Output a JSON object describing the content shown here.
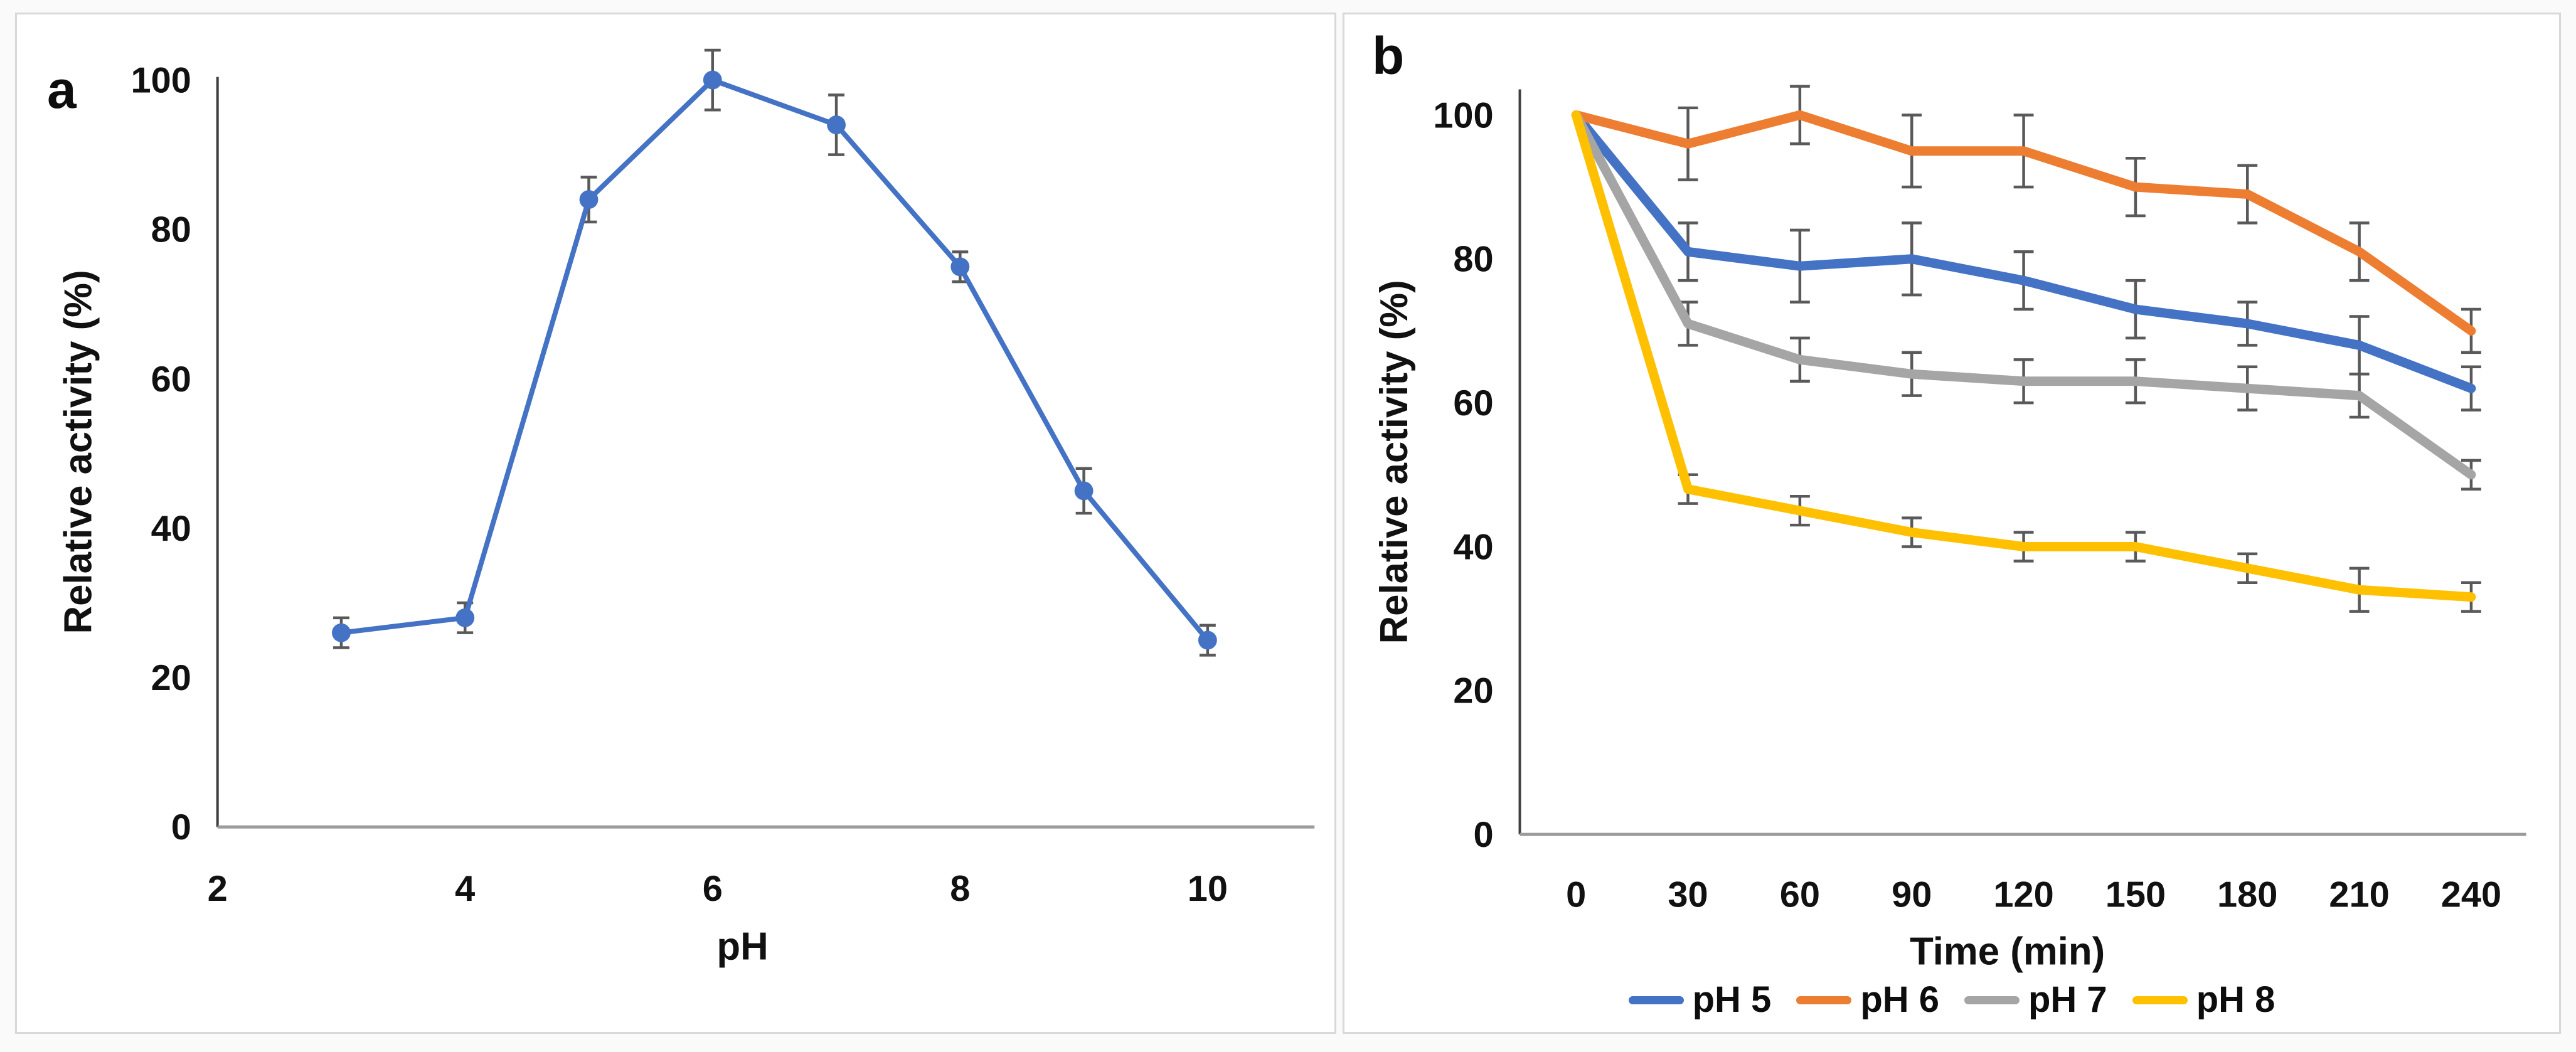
{
  "figure": {
    "background": "#ffffff",
    "frame_color": "#d8d8d8",
    "error_bar_color": "#595959",
    "y_axis_color": "#3f3f3f",
    "x_axis_color": "#9b9b9b"
  },
  "panels": [
    {
      "label": "a"
    },
    {
      "label": "b"
    }
  ],
  "chart_data": [
    {
      "type": "line",
      "title": "",
      "xlabel": "pH",
      "ylabel": "Relative activity (%)",
      "x": [
        3,
        4,
        5,
        6,
        7,
        8,
        9,
        10
      ],
      "xticks": [
        2,
        4,
        6,
        8,
        10
      ],
      "yticks": [
        0,
        20,
        40,
        60,
        80,
        100
      ],
      "xlim": [
        2,
        10.9
      ],
      "ylim": [
        0,
        108
      ],
      "grid": false,
      "legend_position": "none",
      "marker": "circle",
      "series": [
        {
          "name": "relative activity",
          "color": "#4472C4",
          "values": [
            26,
            28,
            84,
            100,
            94,
            75,
            45,
            25
          ],
          "errors": [
            2,
            2,
            3,
            4,
            4,
            2,
            3,
            2
          ]
        }
      ]
    },
    {
      "type": "line",
      "title": "",
      "xlabel": "Time (min)",
      "ylabel": "Relative activity (%)",
      "x": [
        0,
        30,
        60,
        90,
        120,
        150,
        180,
        210,
        240
      ],
      "xticks": [
        0,
        30,
        60,
        90,
        120,
        150,
        180,
        210,
        240
      ],
      "yticks": [
        0,
        20,
        40,
        60,
        80,
        100
      ],
      "xlim": [
        0,
        240
      ],
      "ylim": [
        0,
        108
      ],
      "grid": false,
      "legend_position": "bottom",
      "marker": "none",
      "series": [
        {
          "name": "pH 5",
          "color": "#4472C4",
          "values": [
            100,
            81,
            79,
            80,
            77,
            73,
            71,
            68,
            62
          ],
          "errors": [
            0,
            4,
            5,
            5,
            4,
            4,
            3,
            4,
            3
          ]
        },
        {
          "name": "pH 6",
          "color": "#ED7D31",
          "values": [
            100,
            96,
            100,
            95,
            95,
            90,
            89,
            81,
            70
          ],
          "errors": [
            0,
            5,
            4,
            5,
            5,
            4,
            4,
            4,
            3
          ]
        },
        {
          "name": "pH 7",
          "color": "#A5A5A5",
          "values": [
            100,
            71,
            66,
            64,
            63,
            63,
            62,
            61,
            50
          ],
          "errors": [
            0,
            3,
            3,
            3,
            3,
            3,
            3,
            3,
            2
          ]
        },
        {
          "name": "pH 8",
          "color": "#FFC000",
          "values": [
            100,
            48,
            45,
            42,
            40,
            40,
            37,
            34,
            33
          ],
          "errors": [
            0,
            2,
            2,
            2,
            2,
            2,
            2,
            3,
            2
          ]
        }
      ]
    }
  ]
}
